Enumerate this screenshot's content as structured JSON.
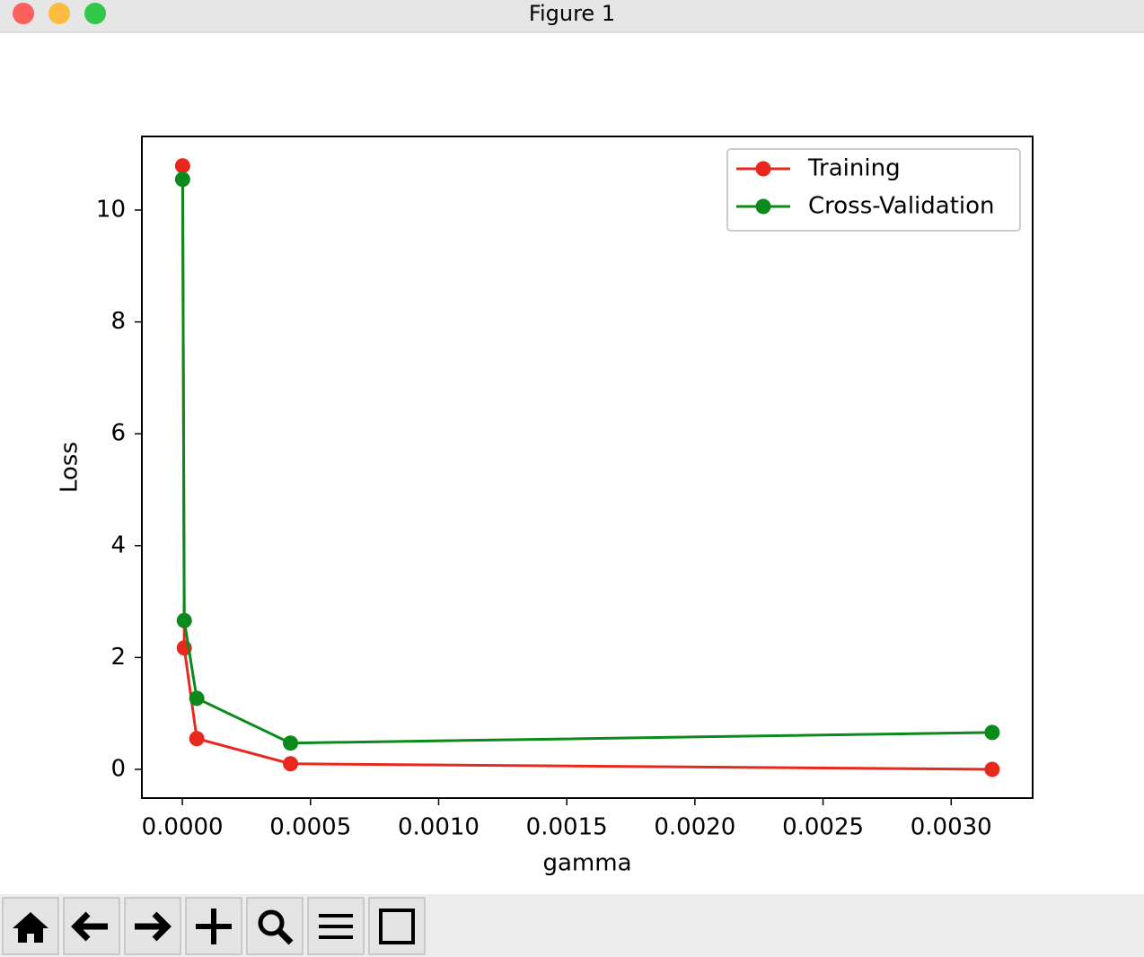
{
  "window": {
    "title": "Figure 1"
  },
  "chart_data": {
    "type": "line",
    "x_label": "gamma",
    "y_label": "Loss",
    "x": [
      1e-06,
      7.5e-06,
      5.62e-05,
      0.000422,
      0.00316
    ],
    "series": [
      {
        "name": "Training",
        "color": "#e8281e",
        "values": [
          10.79,
          2.17,
          0.55,
          0.1,
          0.0
        ]
      },
      {
        "name": "Cross-Validation",
        "color": "#0b8a1b",
        "values": [
          10.55,
          2.66,
          1.27,
          0.47,
          0.66
        ]
      }
    ],
    "xlim": [
      -0.000158,
      0.003318
    ],
    "ylim": [
      -0.514,
      11.316
    ],
    "xticks": [
      {
        "value": 0,
        "label": "0.0000"
      },
      {
        "value": 0.0005,
        "label": "0.0005"
      },
      {
        "value": 0.001,
        "label": "0.0010"
      },
      {
        "value": 0.0015,
        "label": "0.0015"
      },
      {
        "value": 0.002,
        "label": "0.0020"
      },
      {
        "value": 0.0025,
        "label": "0.0025"
      },
      {
        "value": 0.003,
        "label": "0.0030"
      }
    ],
    "yticks": [
      0,
      2,
      4,
      6,
      8,
      10
    ],
    "grid": false,
    "legend": "upper right",
    "markers": true
  }
}
